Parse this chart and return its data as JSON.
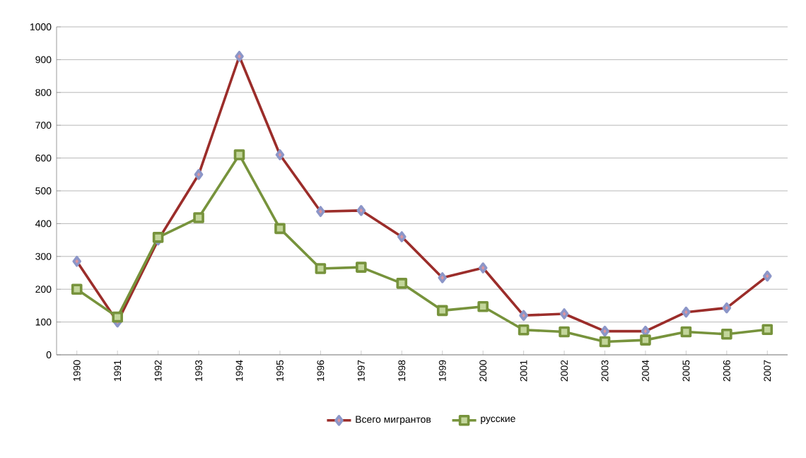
{
  "chart_data": {
    "type": "line",
    "categories": [
      "1990",
      "1991",
      "1992",
      "1993",
      "1994",
      "1995",
      "1996",
      "1997",
      "1998",
      "1999",
      "2000",
      "2001",
      "2002",
      "2003",
      "2004",
      "2005",
      "2006",
      "2007"
    ],
    "series": [
      {
        "name": "Всего мигрантов",
        "color": "#9b2d2a",
        "marker": "diamond",
        "values": [
          285,
          100,
          350,
          550,
          910,
          610,
          437,
          440,
          360,
          235,
          265,
          120,
          125,
          72,
          72,
          130,
          143,
          240
        ]
      },
      {
        "name": "русские",
        "color": "#77933c",
        "marker": "square",
        "values": [
          200,
          115,
          358,
          418,
          610,
          385,
          263,
          267,
          218,
          135,
          147,
          76,
          70,
          40,
          45,
          70,
          63,
          77
        ]
      }
    ],
    "ylim": [
      0,
      1000
    ],
    "yticks": [
      0,
      100,
      200,
      300,
      400,
      500,
      600,
      700,
      800,
      900,
      1000
    ],
    "grid": "y",
    "legend": "bottom"
  }
}
